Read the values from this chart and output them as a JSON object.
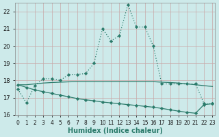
{
  "title": "",
  "xlabel": "Humidex (Indice chaleur)",
  "ylabel": "",
  "bg_color": "#cdeaea",
  "grid_color": "#b8d8d8",
  "line_color": "#2a7a6a",
  "x_values": [
    0,
    1,
    2,
    3,
    4,
    5,
    6,
    7,
    8,
    9,
    10,
    11,
    12,
    13,
    14,
    15,
    16,
    17,
    18,
    19,
    20,
    21,
    22,
    23
  ],
  "curve1": [
    17.5,
    16.7,
    17.7,
    18.1,
    18.1,
    18.0,
    18.35,
    18.35,
    18.4,
    19.0,
    21.0,
    20.3,
    20.6,
    22.4,
    21.1,
    21.1,
    20.0,
    17.8,
    17.8,
    17.8,
    17.8,
    17.8,
    16.65,
    16.65
  ],
  "curve2": [
    17.75,
    17.75,
    17.8,
    17.85,
    17.88,
    17.9,
    17.92,
    17.93,
    17.93,
    17.93,
    17.93,
    17.93,
    17.93,
    17.93,
    17.93,
    17.93,
    17.93,
    17.9,
    17.88,
    17.85,
    17.8,
    17.75,
    17.7,
    17.65
  ],
  "curve3": [
    17.75,
    17.6,
    17.45,
    17.35,
    17.25,
    17.15,
    17.05,
    16.95,
    16.88,
    16.82,
    16.75,
    16.7,
    16.65,
    16.6,
    16.55,
    16.5,
    16.45,
    16.38,
    16.3,
    16.22,
    16.15,
    16.1,
    16.6,
    16.65
  ],
  "ylim": [
    16.0,
    22.5
  ],
  "xlim": [
    -0.3,
    23.3
  ],
  "yticks": [
    16,
    17,
    18,
    19,
    20,
    21,
    22
  ],
  "xticks": [
    0,
    1,
    2,
    3,
    4,
    5,
    6,
    7,
    8,
    9,
    10,
    11,
    12,
    13,
    14,
    15,
    16,
    17,
    18,
    19,
    20,
    21,
    22,
    23
  ]
}
